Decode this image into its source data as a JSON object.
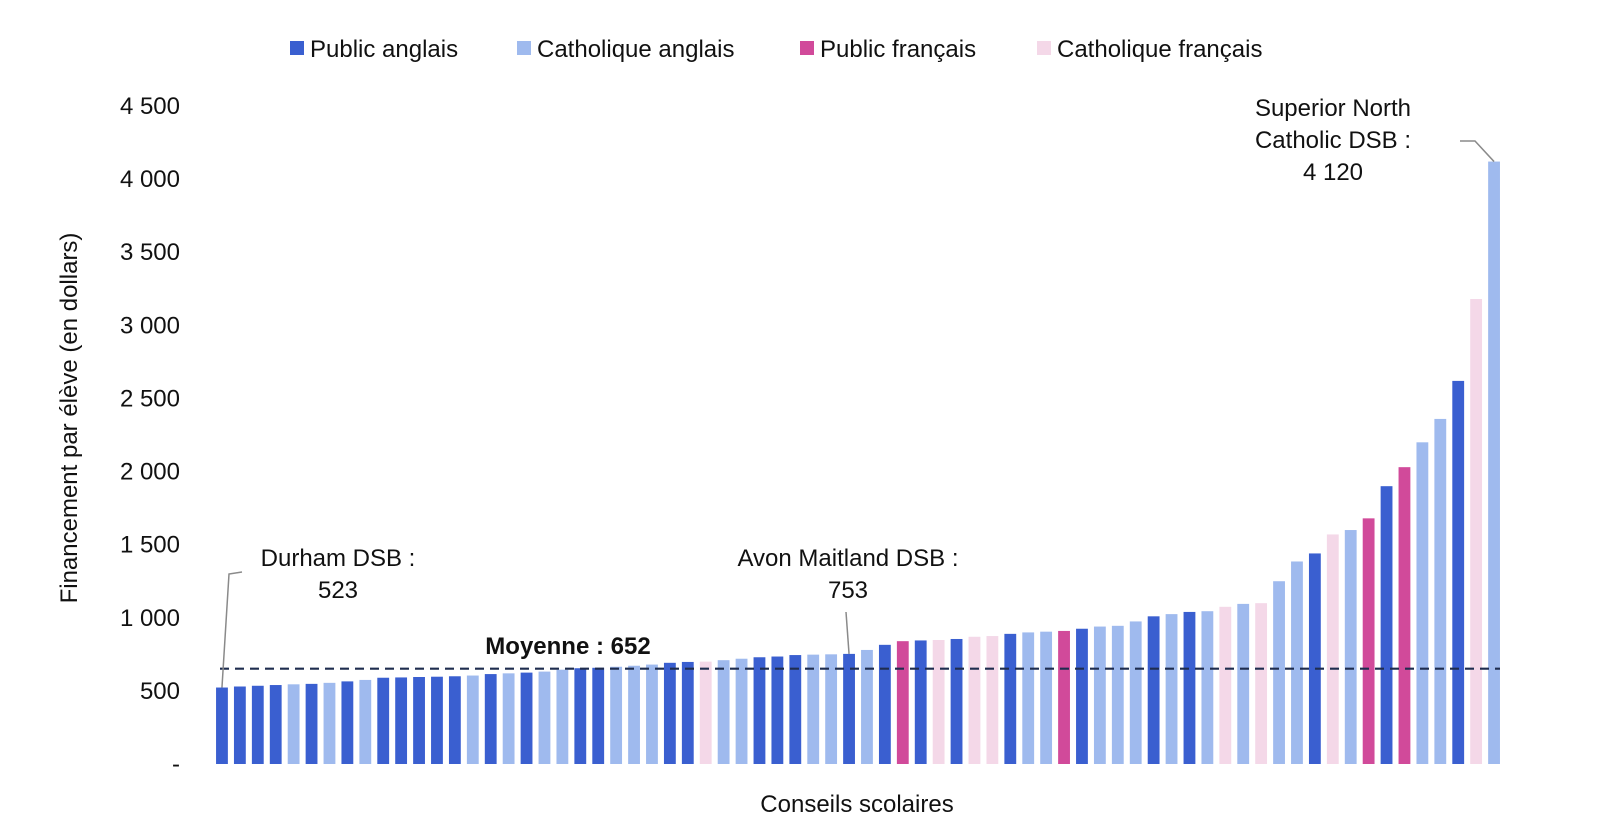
{
  "chart_data": {
    "type": "bar",
    "title": "",
    "xlabel": "Conseils scolaires",
    "ylabel": "Financement par élève (en dollars)",
    "ylim": [
      0,
      4500
    ],
    "yticks": [
      {
        "value": 0,
        "label": "-"
      },
      {
        "value": 500,
        "label": "500"
      },
      {
        "value": 1000,
        "label": "1 000"
      },
      {
        "value": 1500,
        "label": "1 500"
      },
      {
        "value": 2000,
        "label": "2 000"
      },
      {
        "value": 2500,
        "label": "2 500"
      },
      {
        "value": 3000,
        "label": "3 000"
      },
      {
        "value": 3500,
        "label": "3 500"
      },
      {
        "value": 4000,
        "label": "4 000"
      },
      {
        "value": 4500,
        "label": "4 500"
      }
    ],
    "grid": false,
    "legend_position": "top",
    "legend": [
      {
        "key": "PA",
        "label": "Public anglais",
        "color": "#3a5fd0"
      },
      {
        "key": "CA",
        "label": "Catholique anglais",
        "color": "#9fbaee"
      },
      {
        "key": "PF",
        "label": "Public français",
        "color": "#d14a9a"
      },
      {
        "key": "CF",
        "label": "Catholique français",
        "color": "#f4d8e8"
      }
    ],
    "bars": [
      {
        "value": 523,
        "category": "PA"
      },
      {
        "value": 530,
        "category": "PA"
      },
      {
        "value": 535,
        "category": "PA"
      },
      {
        "value": 540,
        "category": "PA"
      },
      {
        "value": 545,
        "category": "CA"
      },
      {
        "value": 548,
        "category": "PA"
      },
      {
        "value": 555,
        "category": "CA"
      },
      {
        "value": 565,
        "category": "PA"
      },
      {
        "value": 575,
        "category": "CA"
      },
      {
        "value": 590,
        "category": "PA"
      },
      {
        "value": 592,
        "category": "PA"
      },
      {
        "value": 595,
        "category": "PA"
      },
      {
        "value": 597,
        "category": "PA"
      },
      {
        "value": 600,
        "category": "PA"
      },
      {
        "value": 605,
        "category": "CA"
      },
      {
        "value": 615,
        "category": "PA"
      },
      {
        "value": 620,
        "category": "CA"
      },
      {
        "value": 625,
        "category": "PA"
      },
      {
        "value": 632,
        "category": "CA"
      },
      {
        "value": 645,
        "category": "CA"
      },
      {
        "value": 655,
        "category": "PA"
      },
      {
        "value": 658,
        "category": "PA"
      },
      {
        "value": 665,
        "category": "CA"
      },
      {
        "value": 672,
        "category": "CA"
      },
      {
        "value": 680,
        "category": "CA"
      },
      {
        "value": 692,
        "category": "PA"
      },
      {
        "value": 698,
        "category": "PA"
      },
      {
        "value": 700,
        "category": "CF"
      },
      {
        "value": 710,
        "category": "CA"
      },
      {
        "value": 720,
        "category": "CA"
      },
      {
        "value": 730,
        "category": "PA"
      },
      {
        "value": 735,
        "category": "PA"
      },
      {
        "value": 745,
        "category": "PA"
      },
      {
        "value": 748,
        "category": "CA"
      },
      {
        "value": 750,
        "category": "CA"
      },
      {
        "value": 753,
        "category": "PA"
      },
      {
        "value": 780,
        "category": "CA"
      },
      {
        "value": 815,
        "category": "PA"
      },
      {
        "value": 840,
        "category": "PF"
      },
      {
        "value": 845,
        "category": "PA"
      },
      {
        "value": 848,
        "category": "CF"
      },
      {
        "value": 855,
        "category": "PA"
      },
      {
        "value": 870,
        "category": "CF"
      },
      {
        "value": 875,
        "category": "CF"
      },
      {
        "value": 890,
        "category": "PA"
      },
      {
        "value": 900,
        "category": "CA"
      },
      {
        "value": 905,
        "category": "CA"
      },
      {
        "value": 910,
        "category": "PF"
      },
      {
        "value": 925,
        "category": "PA"
      },
      {
        "value": 940,
        "category": "CA"
      },
      {
        "value": 945,
        "category": "CA"
      },
      {
        "value": 975,
        "category": "CA"
      },
      {
        "value": 1010,
        "category": "PA"
      },
      {
        "value": 1025,
        "category": "CA"
      },
      {
        "value": 1040,
        "category": "PA"
      },
      {
        "value": 1045,
        "category": "CA"
      },
      {
        "value": 1075,
        "category": "CF"
      },
      {
        "value": 1095,
        "category": "CA"
      },
      {
        "value": 1100,
        "category": "CF"
      },
      {
        "value": 1250,
        "category": "CA"
      },
      {
        "value": 1385,
        "category": "CA"
      },
      {
        "value": 1440,
        "category": "PA"
      },
      {
        "value": 1570,
        "category": "CF"
      },
      {
        "value": 1600,
        "category": "CA"
      },
      {
        "value": 1680,
        "category": "PF"
      },
      {
        "value": 1900,
        "category": "PA"
      },
      {
        "value": 2030,
        "category": "PF"
      },
      {
        "value": 2200,
        "category": "CA"
      },
      {
        "value": 2360,
        "category": "CA"
      },
      {
        "value": 2620,
        "category": "PA"
      },
      {
        "value": 3180,
        "category": "CF"
      },
      {
        "value": 4120,
        "category": "CA"
      }
    ],
    "average": {
      "value": 652,
      "label": "Moyenne : 652"
    },
    "annotations": [
      {
        "bar_index": 0,
        "lines": [
          "Durham DSB :",
          "523"
        ]
      },
      {
        "bar_index": 35,
        "lines": [
          "Avon Maitland DSB :",
          "753"
        ]
      },
      {
        "bar_index": 71,
        "lines": [
          "Superior North",
          "Catholic DSB :",
          "4 120"
        ]
      }
    ]
  }
}
